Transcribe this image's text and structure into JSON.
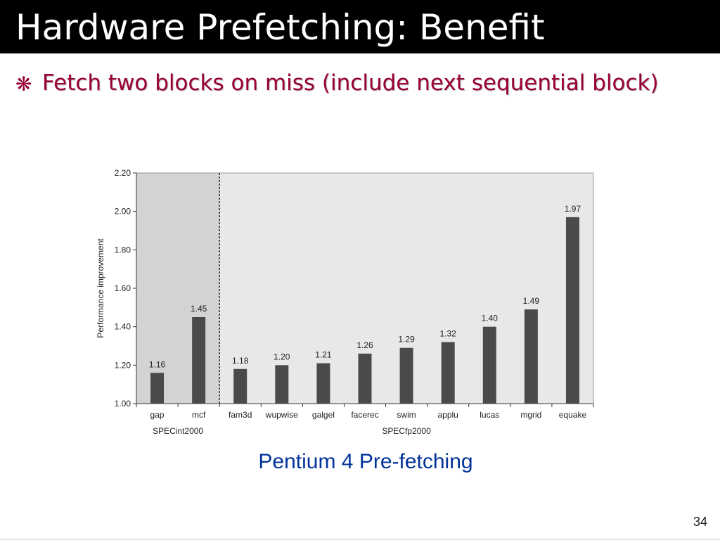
{
  "slide": {
    "title": "Hardware Prefetching:  Benefit",
    "bullet_icon": "asterisk-bullet-icon",
    "bullet": "Fetch two blocks on miss (include next sequential block)",
    "caption": "Pentium 4 Pre-fetching",
    "page_number": "34"
  },
  "colors": {
    "title_bg": "#000000",
    "title_text": "#ffffff",
    "bullet_text": "#990033",
    "caption_text": "#003399",
    "bar": "#4a4a4a",
    "int_region": "#d3d3d3",
    "fp_region": "#e8e8e8"
  },
  "chart_data": {
    "type": "bar",
    "ylabel": "Performance improvement",
    "ylim": [
      1.0,
      2.2
    ],
    "yticks": [
      "1.00",
      "1.20",
      "1.40",
      "1.60",
      "1.80",
      "2.00",
      "2.20"
    ],
    "categories": [
      "gap",
      "mcf",
      "fam3d",
      "wupwise",
      "galgel",
      "facerec",
      "swim",
      "applu",
      "lucas",
      "mgrid",
      "equake"
    ],
    "values": [
      1.16,
      1.45,
      1.18,
      1.2,
      1.21,
      1.26,
      1.29,
      1.32,
      1.4,
      1.49,
      1.97
    ],
    "value_labels": [
      "1.16",
      "1.45",
      "1.18",
      "1.20",
      "1.21",
      "1.26",
      "1.29",
      "1.32",
      "1.40",
      "1.49",
      "1.97"
    ],
    "groups": [
      {
        "name": "SPECint2000",
        "categories": [
          "gap",
          "mcf"
        ]
      },
      {
        "name": "SPECfp2000",
        "categories": [
          "fam3d",
          "wupwise",
          "galgel",
          "facerec",
          "swim",
          "applu",
          "lucas",
          "mgrid",
          "equake"
        ]
      }
    ],
    "grid": false,
    "legend": "none"
  }
}
